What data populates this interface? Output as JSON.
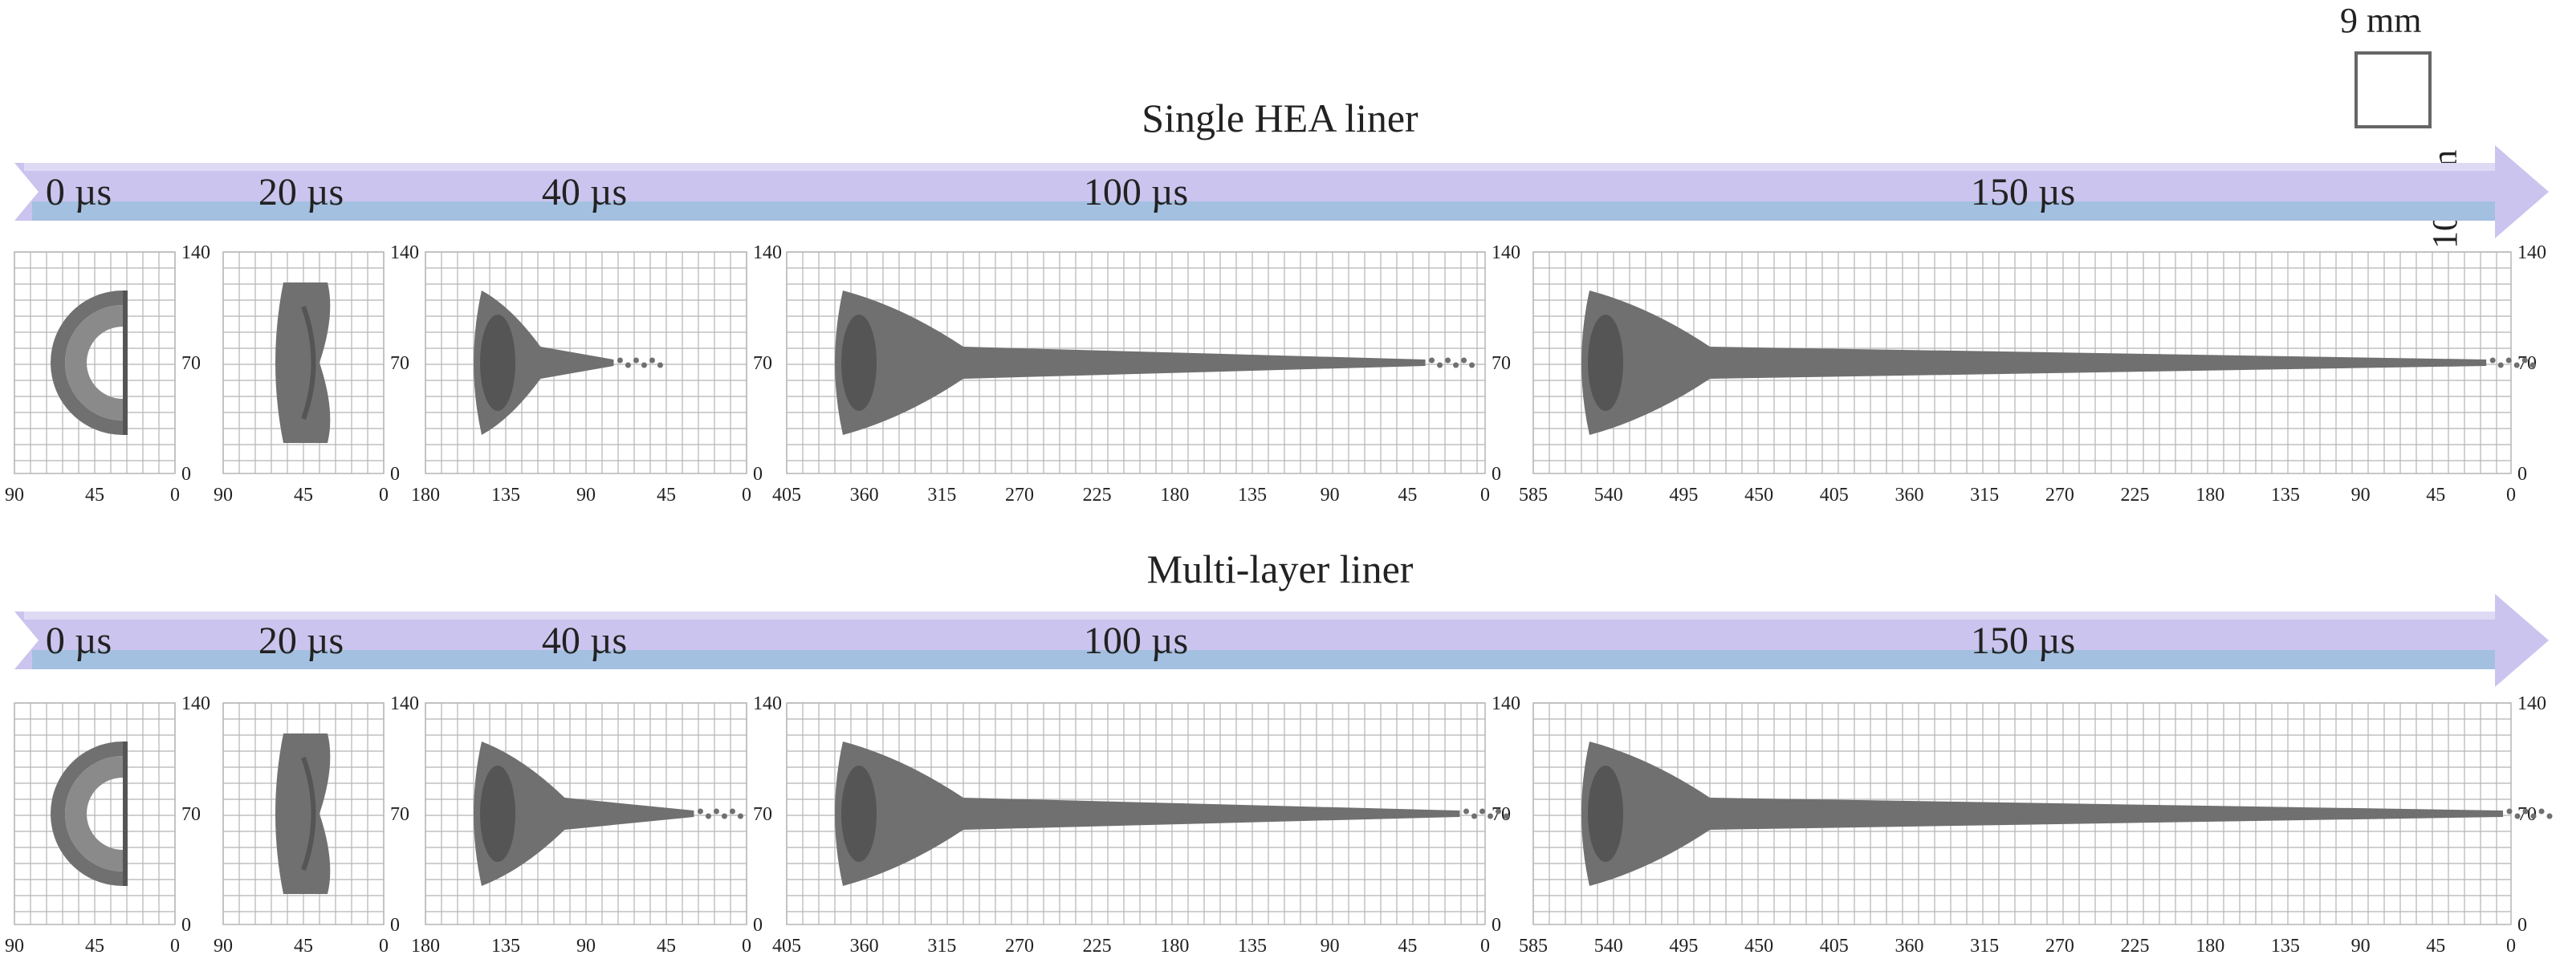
{
  "scale_bar": {
    "width_label": "9 mm",
    "height_label": "10 mm"
  },
  "rows": [
    {
      "id": "single",
      "title": "Single HEA liner",
      "timeline_labels": [
        "0 µs",
        "20 µs",
        "40 µs",
        "100 µs",
        "150 µs"
      ],
      "frames": [
        {
          "time": "0 µs",
          "x_ticks": [
            "90",
            "45",
            "0"
          ],
          "y_ticks": [
            "0",
            "70",
            "140"
          ],
          "jet_length_mm": 0,
          "shape": "liner"
        },
        {
          "time": "20 µs",
          "x_ticks": [
            "90",
            "45",
            "0"
          ],
          "y_ticks": [
            "0",
            "70",
            "140"
          ],
          "jet_length_mm": 0,
          "shape": "collapse"
        },
        {
          "time": "40 µs",
          "x_ticks": [
            "180",
            "135",
            "90",
            "45",
            "0"
          ],
          "y_ticks": [
            "0",
            "70",
            "140"
          ],
          "jet_length_mm": 110,
          "shape": "jet"
        },
        {
          "time": "100 µs",
          "x_ticks": [
            "405",
            "360",
            "315",
            "270",
            "225",
            "180",
            "135",
            "90",
            "45",
            "0"
          ],
          "y_ticks": [
            "0",
            "70",
            "140"
          ],
          "jet_length_mm": 375,
          "shape": "jet"
        },
        {
          "time": "150 µs",
          "x_ticks": [
            "585",
            "540",
            "495",
            "450",
            "405",
            "360",
            "315",
            "270",
            "225",
            "180",
            "135",
            "90",
            "45",
            "0"
          ],
          "y_ticks": [
            "0",
            "70",
            "140"
          ],
          "jet_length_mm": 575,
          "shape": "jet"
        }
      ]
    },
    {
      "id": "multi",
      "title": "Multi-layer liner",
      "timeline_labels": [
        "0 µs",
        "20 µs",
        "40 µs",
        "100 µs",
        "150 µs"
      ],
      "frames": [
        {
          "time": "0 µs",
          "x_ticks": [
            "90",
            "45",
            "0"
          ],
          "y_ticks": [
            "0",
            "70",
            "140"
          ],
          "jet_length_mm": 0,
          "shape": "liner"
        },
        {
          "time": "20 µs",
          "x_ticks": [
            "90",
            "45",
            "0"
          ],
          "y_ticks": [
            "0",
            "70",
            "140"
          ],
          "jet_length_mm": 0,
          "shape": "collapse"
        },
        {
          "time": "40 µs",
          "x_ticks": [
            "180",
            "135",
            "90",
            "45",
            "0"
          ],
          "y_ticks": [
            "0",
            "70",
            "140"
          ],
          "jet_length_mm": 155,
          "shape": "jet"
        },
        {
          "time": "100 µs",
          "x_ticks": [
            "405",
            "360",
            "315",
            "270",
            "225",
            "180",
            "135",
            "90",
            "45",
            "0"
          ],
          "y_ticks": [
            "0",
            "70",
            "140"
          ],
          "jet_length_mm": 395,
          "shape": "jet"
        },
        {
          "time": "150 µs",
          "x_ticks": [
            "585",
            "540",
            "495",
            "450",
            "405",
            "360",
            "315",
            "270",
            "225",
            "180",
            "135",
            "90",
            "45",
            "0"
          ],
          "y_ticks": [
            "0",
            "70",
            "140"
          ],
          "jet_length_mm": 585,
          "shape": "jet"
        }
      ]
    }
  ],
  "colors": {
    "grid": "#b5b5b5",
    "material": "#707070",
    "material_dark": "#555555",
    "arrow_top": "#cbc4ee",
    "arrow_bottom": "#9ec0dd"
  }
}
